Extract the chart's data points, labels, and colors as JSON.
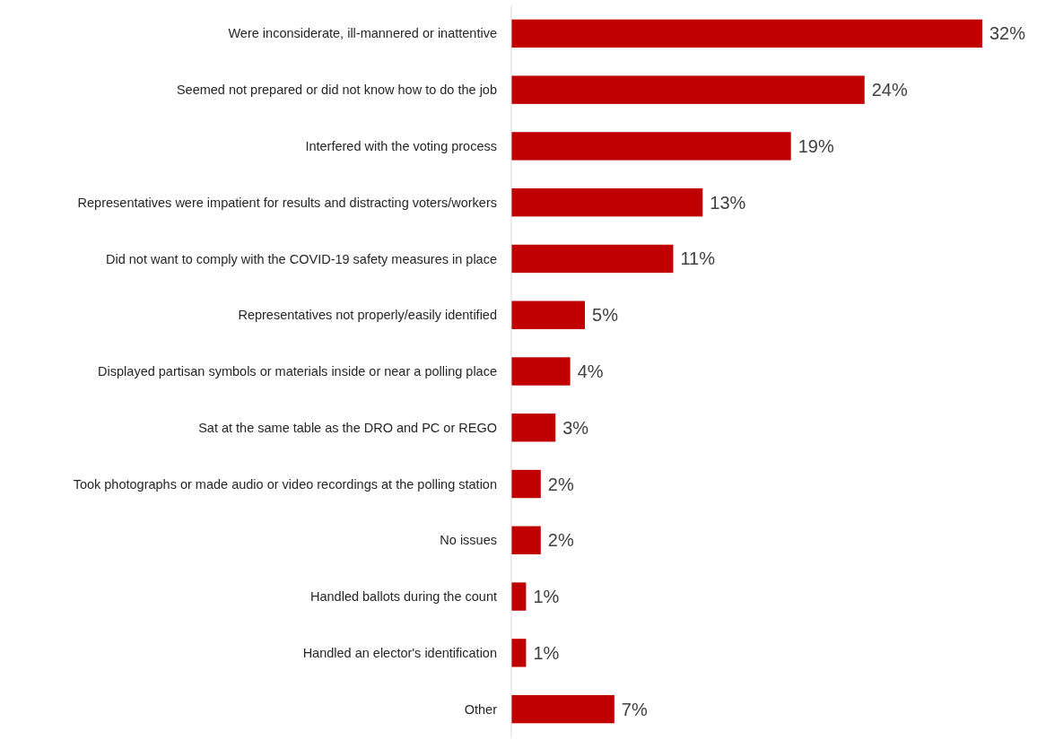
{
  "chart_data": {
    "type": "bar",
    "orientation": "horizontal",
    "color": "#c00000",
    "categories": [
      "Were inconsiderate, ill-mannered or inattentive",
      "Seemed not prepared or did not know how to do the job",
      "Interfered with the voting process",
      "Representatives were impatient for results and distracting voters/workers",
      "Did not want to comply with the COVID-19 safety measures in place",
      "Representatives not properly/easily identified",
      "Displayed partisan symbols or materials inside or near a polling place",
      "Sat at the same table as the DRO and PC or REGO",
      "Took photographs or made audio or video recordings at the polling station",
      "No issues",
      "Handled ballots during the count",
      "Handled an elector's identification",
      "Other"
    ],
    "values": [
      32,
      24,
      19,
      13,
      11,
      5,
      4,
      3,
      2,
      2,
      1,
      1,
      7
    ],
    "value_labels": [
      "32%",
      "24%",
      "19%",
      "13%",
      "11%",
      "5%",
      "4%",
      "3%",
      "2%",
      "2%",
      "1%",
      "1%",
      "7%"
    ]
  }
}
